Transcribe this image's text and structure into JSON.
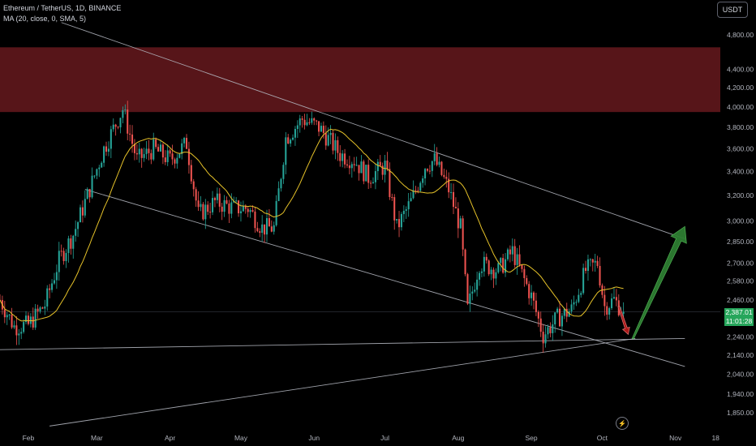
{
  "legend": {
    "symbol": "Ethereum / TetherUS, 1D, BINANCE",
    "indicator": "MA (20, close, 0, SMA, 5)"
  },
  "currency_label": "USDT",
  "last_price": "2,387.01",
  "countdown": "11:01:28",
  "colors": {
    "up": "#26a69a",
    "down": "#ef5350",
    "ma": "#e6c229",
    "zone": "#5c161a",
    "trendline": "#b2b5be",
    "projection_up": "#2e7d32",
    "projection_down": "#b71c1c",
    "price_tag": "#26a65b"
  },
  "chart_data": {
    "type": "candlestick",
    "y_scale": "log",
    "ylim": [
      1800,
      5000
    ],
    "y_ticks": [
      "4,800.00",
      "4,400.00",
      "4,200.00",
      "4,000.00",
      "3,800.00",
      "3,600.00",
      "3,400.00",
      "3,200.00",
      "3,000.00",
      "2,850.00",
      "2,700.00",
      "2,580.00",
      "2,460.00",
      "2,340.00",
      "2,240.00",
      "2,140.00",
      "2,040.00",
      "1,940.00",
      "1,850.00"
    ],
    "x_ticks": [
      "Feb",
      "Mar",
      "Apr",
      "May",
      "Jun",
      "Jul",
      "Aug",
      "Sep",
      "Oct",
      "Nov",
      "18"
    ],
    "x_start": "2024-01-20",
    "x_end": "2024-11-20",
    "resistance_zone": [
      3950,
      4650
    ],
    "price_path": [
      [
        "2024-01-20",
        2460
      ],
      [
        "2024-01-26",
        2300
      ],
      [
        "2024-02-01",
        2310
      ],
      [
        "2024-02-08",
        2430
      ],
      [
        "2024-02-14",
        2720
      ],
      [
        "2024-02-20",
        2900
      ],
      [
        "2024-02-26",
        3200
      ],
      [
        "2024-03-04",
        3600
      ],
      [
        "2024-03-12",
        3980
      ],
      [
        "2024-03-18",
        3500
      ],
      [
        "2024-03-25",
        3600
      ],
      [
        "2024-04-01",
        3500
      ],
      [
        "2024-04-08",
        3650
      ],
      [
        "2024-04-13",
        3050
      ],
      [
        "2024-04-20",
        3150
      ],
      [
        "2024-04-28",
        3100
      ],
      [
        "2024-05-04",
        3100
      ],
      [
        "2024-05-10",
        2950
      ],
      [
        "2024-05-15",
        2950
      ],
      [
        "2024-05-20",
        3700
      ],
      [
        "2024-05-27",
        3880
      ],
      [
        "2024-06-03",
        3800
      ],
      [
        "2024-06-06",
        3720
      ],
      [
        "2024-06-12",
        3550
      ],
      [
        "2024-06-18",
        3500
      ],
      [
        "2024-06-24",
        3350
      ],
      [
        "2024-07-01",
        3450
      ],
      [
        "2024-07-06",
        2950
      ],
      [
        "2024-07-12",
        3150
      ],
      [
        "2024-07-18",
        3450
      ],
      [
        "2024-07-22",
        3500
      ],
      [
        "2024-07-28",
        3250
      ],
      [
        "2024-08-02",
        2950
      ],
      [
        "2024-08-05",
        2400
      ],
      [
        "2024-08-10",
        2700
      ],
      [
        "2024-08-18",
        2650
      ],
      [
        "2024-08-24",
        2780
      ],
      [
        "2024-09-01",
        2480
      ],
      [
        "2024-09-06",
        2250
      ],
      [
        "2024-09-12",
        2350
      ],
      [
        "2024-09-18",
        2400
      ],
      [
        "2024-09-24",
        2650
      ],
      [
        "2024-09-29",
        2700
      ],
      [
        "2024-10-02",
        2420
      ],
      [
        "2024-10-06",
        2460
      ],
      [
        "2024-10-10",
        2387
      ]
    ],
    "trendlines": [
      {
        "name": "upper-channel",
        "from": [
          "2024-02-15",
          4950
        ],
        "to": [
          "2024-11-05",
          2870
        ]
      },
      {
        "name": "lower-channel",
        "from": [
          "2024-02-25",
          3250
        ],
        "to": [
          "2024-11-05",
          2080
        ]
      },
      {
        "name": "horizontal-support",
        "from": [
          "2024-01-20",
          2170
        ],
        "to": [
          "2024-11-05",
          2232
        ]
      },
      {
        "name": "rising-support",
        "from": [
          "2024-02-10",
          1790
        ],
        "to": [
          "2024-10-15",
          2232
        ]
      }
    ],
    "projection": [
      {
        "direction": "down",
        "from": [
          "2024-10-08",
          2420
        ],
        "to": [
          "2024-10-12",
          2255
        ]
      },
      {
        "direction": "up",
        "from": [
          "2024-10-14",
          2232
        ],
        "to": [
          "2024-11-05",
          2960
        ]
      }
    ]
  }
}
